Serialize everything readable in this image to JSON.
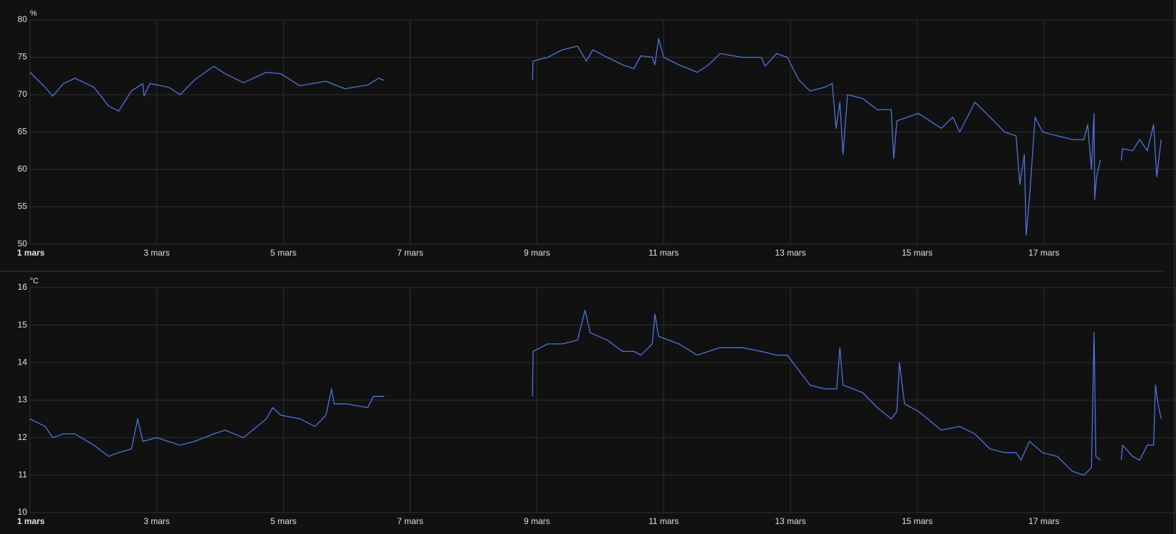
{
  "chart_data": [
    {
      "type": "line",
      "y_label": "%",
      "color": "#4f74dc",
      "grid": true,
      "xlim": [
        1,
        18.87
      ],
      "xticks": [
        {
          "value": 1,
          "label": "1 mars"
        },
        {
          "value": 3,
          "label": "3 mars"
        },
        {
          "value": 5,
          "label": "5 mars"
        },
        {
          "value": 7,
          "label": "7 mars"
        },
        {
          "value": 9,
          "label": "9 mars"
        },
        {
          "value": 11,
          "label": "11 mars"
        },
        {
          "value": 13,
          "label": "13 mars"
        },
        {
          "value": 15,
          "label": "15 mars"
        },
        {
          "value": 17,
          "label": "17 mars"
        }
      ],
      "ylim": [
        50,
        80
      ],
      "yticks": [
        50,
        55,
        60,
        65,
        70,
        75,
        80
      ],
      "x": [
        1.0,
        1.24,
        1.36,
        1.53,
        1.71,
        2.01,
        2.24,
        2.4,
        2.6,
        2.78,
        2.8,
        2.89,
        3.19,
        3.37,
        3.6,
        3.9,
        4.08,
        4.37,
        4.73,
        4.96,
        5.26,
        5.67,
        5.97,
        6.33,
        6.5,
        6.59,
        7.7,
        8.93,
        8.94,
        9.17,
        9.4,
        9.64,
        9.78,
        9.88,
        10.11,
        10.35,
        10.53,
        10.64,
        10.82,
        10.86,
        10.92,
        11.0,
        11.24,
        11.53,
        11.71,
        11.89,
        12.24,
        12.54,
        12.6,
        12.78,
        12.95,
        13.13,
        13.31,
        13.54,
        13.66,
        13.72,
        13.78,
        13.83,
        13.9,
        14.14,
        14.37,
        14.59,
        14.63,
        14.68,
        14.85,
        15.02,
        15.38,
        15.56,
        15.67,
        15.91,
        16.15,
        16.38,
        16.56,
        16.62,
        16.69,
        16.72,
        16.77,
        16.86,
        16.98,
        17.21,
        17.45,
        17.63,
        17.69,
        17.75,
        17.79,
        17.8,
        17.83,
        17.89,
        18.05,
        18.22,
        18.24,
        18.4,
        18.51,
        18.63,
        18.73,
        18.78,
        18.85
      ],
      "values": [
        73,
        71,
        69.8,
        71.5,
        72.2,
        71,
        68.5,
        67.8,
        70.5,
        71.5,
        69.8,
        71.5,
        71,
        70,
        72,
        73.8,
        72.8,
        71.6,
        73,
        72.8,
        71.2,
        71.8,
        70.8,
        71.3,
        72.2,
        71.9,
        null,
        72,
        74.5,
        75,
        76,
        76.5,
        74.5,
        76,
        75,
        74,
        73.5,
        75.2,
        75,
        74,
        77.5,
        75,
        74,
        73,
        74,
        75.5,
        75,
        75,
        73.8,
        75.5,
        75,
        72,
        70.5,
        71,
        71.5,
        65.5,
        69,
        62,
        70,
        69.5,
        68,
        68,
        61.5,
        66.5,
        67,
        67.5,
        65.5,
        67,
        65,
        69,
        67,
        65,
        64.5,
        58,
        62,
        51.2,
        56,
        67,
        65,
        64.5,
        64,
        64,
        66,
        60,
        67.5,
        56,
        59,
        61.3,
        null,
        61.2,
        62.8,
        62.5,
        64,
        62.5,
        66,
        59,
        64
      ]
    },
    {
      "type": "line",
      "y_label": "°C",
      "color": "#4f74dc",
      "grid": true,
      "xlim": [
        1,
        18.87
      ],
      "xticks": [
        {
          "value": 1,
          "label": "1 mars"
        },
        {
          "value": 3,
          "label": "3 mars"
        },
        {
          "value": 5,
          "label": "5 mars"
        },
        {
          "value": 7,
          "label": "7 mars"
        },
        {
          "value": 9,
          "label": "9 mars"
        },
        {
          "value": 11,
          "label": "11 mars"
        },
        {
          "value": 13,
          "label": "13 mars"
        },
        {
          "value": 15,
          "label": "15 mars"
        },
        {
          "value": 17,
          "label": "17 mars"
        }
      ],
      "ylim": [
        10,
        16
      ],
      "yticks": [
        10,
        11,
        12,
        13,
        14,
        15,
        16
      ],
      "x": [
        1.0,
        1.24,
        1.36,
        1.53,
        1.71,
        2.01,
        2.24,
        2.4,
        2.6,
        2.7,
        2.78,
        3.0,
        3.37,
        3.6,
        3.9,
        4.08,
        4.37,
        4.73,
        4.83,
        4.96,
        5.26,
        5.5,
        5.67,
        5.76,
        5.8,
        6.0,
        6.33,
        6.42,
        6.59,
        7.7,
        8.93,
        8.94,
        9.17,
        9.4,
        9.64,
        9.76,
        9.84,
        10.11,
        10.35,
        10.53,
        10.64,
        10.82,
        10.86,
        10.92,
        11.24,
        11.53,
        11.89,
        12.24,
        12.54,
        12.78,
        12.95,
        13.13,
        13.31,
        13.54,
        13.73,
        13.78,
        13.83,
        14.14,
        14.37,
        14.59,
        14.68,
        14.72,
        14.8,
        15.02,
        15.38,
        15.67,
        15.91,
        16.15,
        16.38,
        16.56,
        16.64,
        16.77,
        16.98,
        17.21,
        17.45,
        17.63,
        17.69,
        17.75,
        17.79,
        17.82,
        17.89,
        18.05,
        18.22,
        18.24,
        18.4,
        18.51,
        18.63,
        18.73,
        18.76,
        18.8,
        18.85
      ],
      "values": [
        12.5,
        12.3,
        12,
        12.1,
        12.1,
        11.8,
        11.5,
        11.6,
        11.7,
        12.5,
        11.9,
        12,
        11.8,
        11.9,
        12.1,
        12.2,
        12,
        12.5,
        12.8,
        12.6,
        12.5,
        12.3,
        12.6,
        13.3,
        12.9,
        12.9,
        12.8,
        13.1,
        13.1,
        null,
        13.1,
        14.3,
        14.5,
        14.5,
        14.6,
        15.4,
        14.8,
        14.6,
        14.3,
        14.3,
        14.2,
        14.5,
        15.3,
        14.7,
        14.5,
        14.2,
        14.4,
        14.4,
        14.3,
        14.2,
        14.2,
        13.8,
        13.4,
        13.3,
        13.3,
        14.4,
        13.4,
        13.2,
        12.8,
        12.5,
        12.7,
        14,
        12.9,
        12.7,
        12.2,
        12.3,
        12.1,
        11.7,
        11.6,
        11.6,
        11.4,
        11.9,
        11.6,
        11.5,
        11.1,
        11,
        11.1,
        11.2,
        14.8,
        11.5,
        11.4,
        null,
        11.4,
        11.8,
        11.5,
        11.4,
        11.8,
        11.8,
        13.4,
        12.9,
        12.5
      ]
    }
  ]
}
